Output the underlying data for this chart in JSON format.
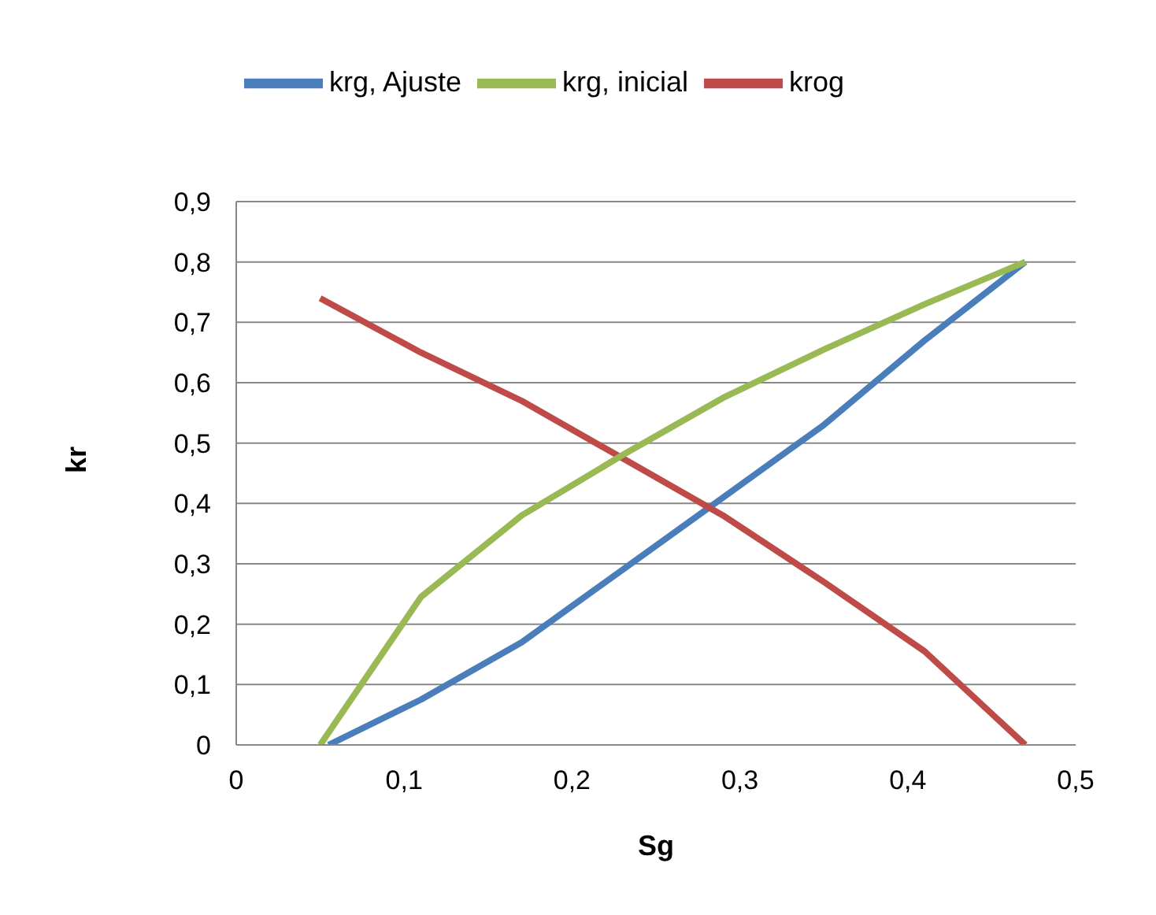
{
  "chart_data": {
    "type": "line",
    "xlabel": "Sg",
    "ylabel": "kr",
    "xlim": [
      0,
      0.5
    ],
    "xticks": [
      {
        "value": 0,
        "label": "0"
      },
      {
        "value": 0.1,
        "label": "0,1"
      },
      {
        "value": 0.2,
        "label": "0,2"
      },
      {
        "value": 0.3,
        "label": "0,3"
      },
      {
        "value": 0.4,
        "label": "0,4"
      },
      {
        "value": 0.5,
        "label": "0,5"
      }
    ],
    "ylim": [
      0,
      0.9
    ],
    "yticks": [
      {
        "value": 0,
        "label": "0"
      },
      {
        "value": 0.1,
        "label": "0,1"
      },
      {
        "value": 0.2,
        "label": "0,2"
      },
      {
        "value": 0.3,
        "label": "0,3"
      },
      {
        "value": 0.4,
        "label": "0,4"
      },
      {
        "value": 0.5,
        "label": "0,5"
      },
      {
        "value": 0.6,
        "label": "0,6"
      },
      {
        "value": 0.7,
        "label": "0,7"
      },
      {
        "value": 0.8,
        "label": "0,8"
      },
      {
        "value": 0.9,
        "label": "0,9"
      }
    ],
    "grid": "y",
    "legend": "top",
    "marker": "none",
    "line_style": "solid",
    "series": [
      {
        "name": "krg, Ajuste",
        "color": "#4a7ebb",
        "x": [
          0.055,
          0.11,
          0.17,
          0.23,
          0.29,
          0.35,
          0.41,
          0.47
        ],
        "values": [
          0,
          0.075,
          0.17,
          0.29,
          0.41,
          0.53,
          0.67,
          0.8
        ]
      },
      {
        "name": "krog",
        "color": "#be4b48",
        "x": [
          0.05,
          0.11,
          0.17,
          0.23,
          0.29,
          0.35,
          0.41,
          0.47
        ],
        "values": [
          0.74,
          0.65,
          0.57,
          0.475,
          0.38,
          0.27,
          0.155,
          0
        ]
      },
      {
        "name": "krg, inicial",
        "color": "#98b954",
        "x": [
          0.05,
          0.11,
          0.17,
          0.23,
          0.29,
          0.35,
          0.41,
          0.47
        ],
        "values": [
          0,
          0.245,
          0.38,
          0.48,
          0.575,
          0.655,
          0.73,
          0.8
        ]
      }
    ]
  }
}
